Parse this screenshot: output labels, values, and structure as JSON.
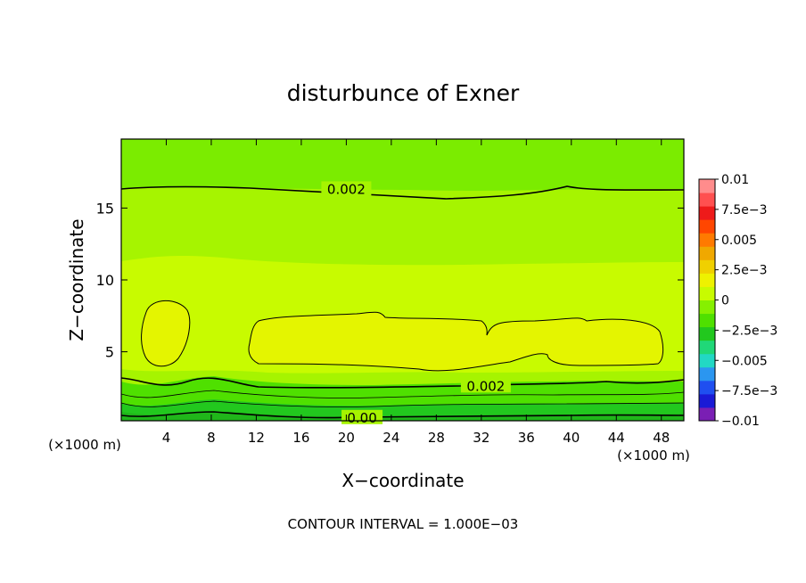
{
  "chart_data": {
    "type": "heatmap",
    "title": "disturbunce of Exner",
    "xlabel": "X−coordinate",
    "ylabel": "Z−coordinate",
    "x_unit": "(×1000 m)",
    "x_unit_right": "(×1000 m)",
    "footer": "CONTOUR INTERVAL = 1.000E−03",
    "xlim": [
      0,
      50
    ],
    "ylim": [
      0.2,
      19.8
    ],
    "x_ticks": [
      4,
      8,
      12,
      16,
      20,
      24,
      28,
      32,
      36,
      40,
      44,
      48
    ],
    "x_tick_labels": [
      "4",
      "8",
      "12",
      "16",
      "20",
      "24",
      "28",
      "32",
      "36",
      "40",
      "44",
      "48"
    ],
    "y_ticks": [
      5,
      10,
      15
    ],
    "y_tick_labels": [
      "5",
      "10",
      "15"
    ],
    "colorbar": {
      "min": -0.01,
      "max": 0.01,
      "levels": [
        -0.01,
        -0.0075,
        -0.005,
        -0.0025,
        0,
        0.0025,
        0.005,
        0.0075,
        0.01
      ],
      "tick_labels": [
        "0.01",
        "7.5e−3",
        "0.005",
        "2.5e−3",
        "0",
        "−2.5e−3",
        "−0.005",
        "−7.5e−3",
        "−0.01"
      ],
      "colors": [
        "#7a1fb4",
        "#1a1ad6",
        "#1f4ff0",
        "#2b96f0",
        "#22d8c4",
        "#20d878",
        "#22c81e",
        "#4fe000",
        "#86f000",
        "#c8fb00",
        "#eef200",
        "#f0d000",
        "#f0a800",
        "#ff7a00",
        "#ff4600",
        "#ee1a1a",
        "#ff5050",
        "#ff8c8c"
      ]
    },
    "contour_labels": [
      {
        "text": "0.002",
        "x": 20,
        "z": 16.3
      },
      {
        "text": "0.002",
        "x": 32.4,
        "z": 2.6
      },
      {
        "text": "0.00",
        "x": 21.4,
        "z": 0.4
      }
    ],
    "fill_bands": [
      {
        "level": 0.0025,
        "color": "#86f000"
      },
      {
        "level": 0.003,
        "color": "#c8fb00"
      },
      {
        "level": 0.0035,
        "color": "#e4f500"
      }
    ]
  }
}
